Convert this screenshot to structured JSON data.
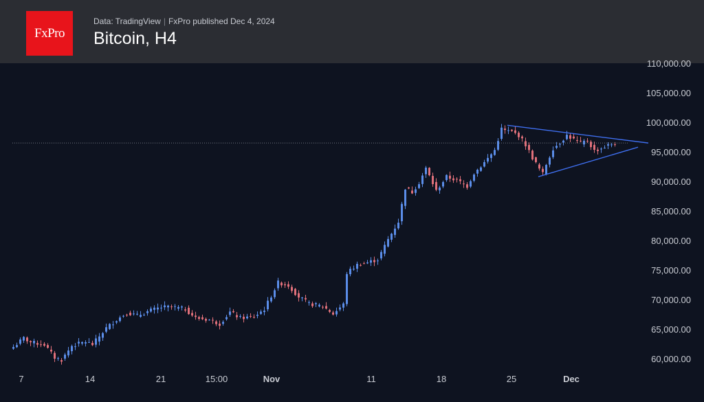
{
  "header": {
    "logo_text": "FxPro",
    "source_data": "Data: TradingView",
    "source_sep": "|",
    "source_publisher": "FxPro published Dec 4, 2024",
    "title": "Bitcoin, H4"
  },
  "colors": {
    "background": "#0e1320",
    "header": "#2b2d33",
    "logo": "#e8141b",
    "up_candle": "#5b8de8",
    "down_candle": "#e0707a",
    "trendline": "#3f6ff0"
  },
  "chart_data": {
    "type": "candlestick",
    "title": "Bitcoin, H4",
    "xlabel": "",
    "ylabel": "",
    "ylim": [
      58500,
      110000
    ],
    "y_ticks": [
      60000,
      65000,
      70000,
      75000,
      80000,
      85000,
      90000,
      95000,
      100000,
      105000,
      110000
    ],
    "y_tick_labels": [
      "60,000.00",
      "65,000.00",
      "70,000.00",
      "75,000.00",
      "80,000.00",
      "85,000.00",
      "90,000.00",
      "95,000.00",
      "100,000.00",
      "105,000.00",
      "110,000.00"
    ],
    "x_ticks": [
      {
        "label": "7",
        "bold": false
      },
      {
        "label": "14",
        "bold": false
      },
      {
        "label": "21",
        "bold": false
      },
      {
        "label": "15:00",
        "bold": false
      },
      {
        "label": "Nov",
        "bold": true
      },
      {
        "label": "11",
        "bold": false
      },
      {
        "label": "18",
        "bold": false
      },
      {
        "label": "25",
        "bold": false
      },
      {
        "label": "Dec",
        "bold": true
      }
    ],
    "close_path": [
      [
        0,
        62000
      ],
      [
        3,
        63500
      ],
      [
        5,
        62800
      ],
      [
        9,
        62400
      ],
      [
        12,
        60200
      ],
      [
        14,
        59800
      ],
      [
        17,
        62200
      ],
      [
        21,
        62900
      ],
      [
        23,
        62400
      ],
      [
        27,
        65200
      ],
      [
        30,
        66600
      ],
      [
        33,
        67800
      ],
      [
        36,
        67300
      ],
      [
        40,
        68200
      ],
      [
        43,
        68700
      ],
      [
        46,
        68800
      ],
      [
        50,
        68400
      ],
      [
        53,
        66900
      ],
      [
        57,
        66600
      ],
      [
        60,
        65900
      ],
      [
        63,
        67900
      ],
      [
        66,
        66900
      ],
      [
        70,
        67100
      ],
      [
        73,
        68400
      ],
      [
        77,
        72900
      ],
      [
        80,
        72400
      ],
      [
        83,
        70500
      ],
      [
        86,
        69300
      ],
      [
        90,
        68900
      ],
      [
        93,
        67600
      ],
      [
        96,
        69200
      ],
      [
        97,
        74500
      ],
      [
        100,
        75900
      ],
      [
        103,
        76300
      ],
      [
        106,
        76800
      ],
      [
        109,
        80200
      ],
      [
        112,
        83200
      ],
      [
        114,
        88900
      ],
      [
        116,
        88200
      ],
      [
        118,
        89800
      ],
      [
        120,
        92200
      ],
      [
        123,
        88400
      ],
      [
        126,
        90800
      ],
      [
        129,
        90200
      ],
      [
        132,
        89200
      ],
      [
        134,
        91400
      ],
      [
        137,
        93200
      ],
      [
        140,
        95300
      ],
      [
        142,
        98900
      ],
      [
        143,
        98600
      ],
      [
        145,
        98400
      ],
      [
        147,
        97800
      ],
      [
        149,
        96200
      ],
      [
        151,
        94000
      ],
      [
        153,
        92100
      ],
      [
        154,
        91300
      ],
      [
        155,
        92900
      ],
      [
        157,
        95600
      ],
      [
        159,
        96600
      ],
      [
        161,
        97800
      ],
      [
        163,
        97100
      ],
      [
        165,
        96500
      ],
      [
        167,
        96900
      ],
      [
        169,
        95200
      ],
      [
        171,
        95600
      ],
      [
        173,
        96100
      ],
      [
        175,
        96500
      ]
    ],
    "last_price": 96500,
    "trendlines": [
      {
        "name": "resistance",
        "from": [
          144,
          99500
        ],
        "to": [
          185,
          96500
        ]
      },
      {
        "name": "support",
        "from": [
          153,
          90800
        ],
        "to": [
          182,
          95800
        ]
      }
    ]
  }
}
